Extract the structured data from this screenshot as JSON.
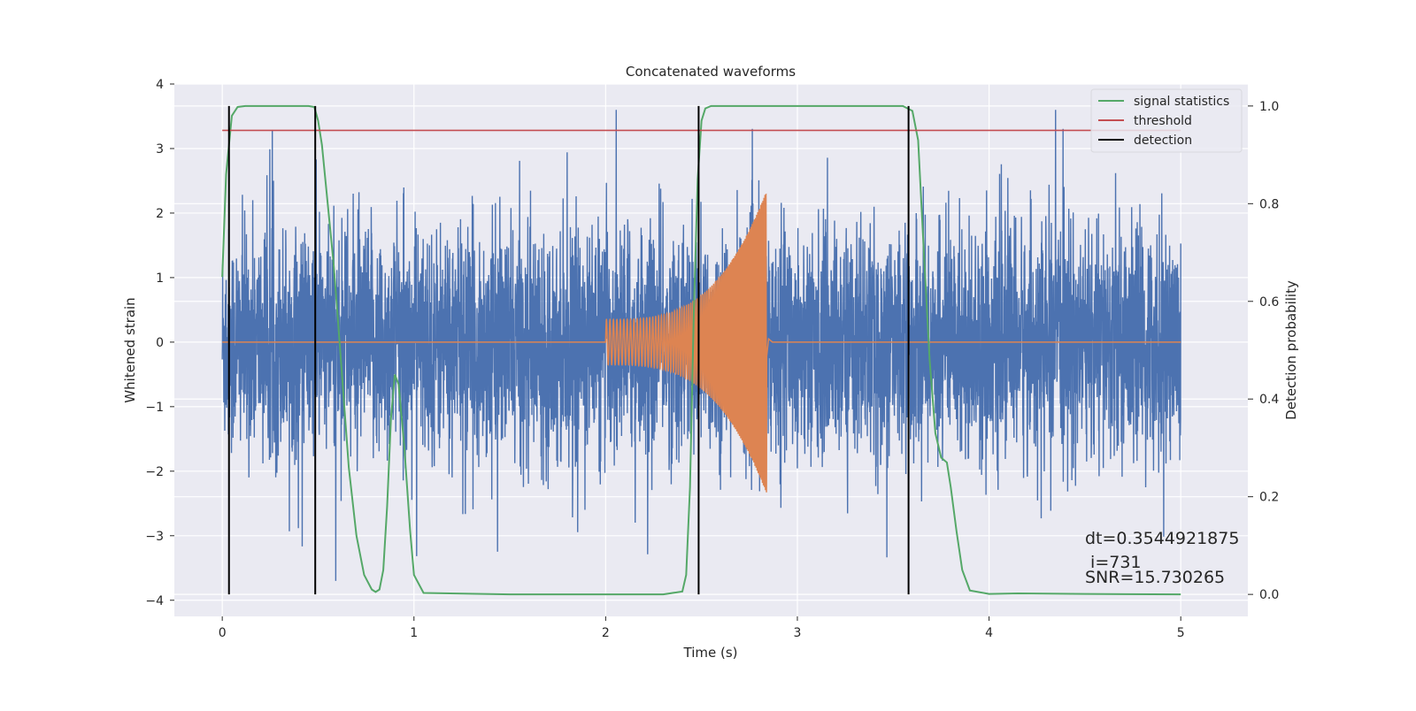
{
  "chart_data": {
    "type": "line",
    "title": "Concatenated waveforms",
    "xlabel": "Time (s)",
    "ylabel_left": "Whitened strain",
    "ylabel_right": "Detection probability",
    "xlim": [
      -0.25,
      5.35
    ],
    "ylim_left": [
      -4.25,
      4.0
    ],
    "ylim_right": [
      -0.045,
      1.045
    ],
    "x_ticks": [
      0,
      1,
      2,
      3,
      4,
      5
    ],
    "y_left_ticks": [
      -4,
      -3,
      -2,
      -1,
      0,
      1,
      2,
      3,
      4
    ],
    "y_right_ticks": [
      0.0,
      0.2,
      0.4,
      0.6,
      0.8,
      1.0
    ],
    "y_right_tick_labels": [
      "0.0",
      "0.2",
      "0.4",
      "0.6",
      "0.8",
      "1.0"
    ],
    "grid": true,
    "legend_position": "top-right",
    "colors": {
      "strain": "#4c72b0",
      "template": "#dd8452",
      "signal_statistics": "#55a868",
      "threshold": "#c44e52",
      "detection": "#000000",
      "axes_background": "#eaeaf2",
      "grid": "#ffffff"
    },
    "series": [
      {
        "name": "signal statistics",
        "axis": "right",
        "x": [
          0.0,
          0.02,
          0.05,
          0.08,
          0.12,
          0.2,
          0.3,
          0.4,
          0.45,
          0.48,
          0.5,
          0.52,
          0.55,
          0.58,
          0.6,
          0.63,
          0.66,
          0.7,
          0.74,
          0.78,
          0.8,
          0.82,
          0.84,
          0.86,
          0.88,
          0.9,
          0.92,
          0.95,
          0.98,
          1.0,
          1.05,
          1.5,
          2.0,
          2.3,
          2.4,
          2.42,
          2.44,
          2.46,
          2.48,
          2.5,
          2.52,
          2.55,
          2.6,
          3.0,
          3.5,
          3.55,
          3.6,
          3.63,
          3.66,
          3.69,
          3.72,
          3.75,
          3.78,
          3.8,
          3.83,
          3.86,
          3.9,
          4.0,
          4.15,
          4.5,
          5.0
        ],
        "values": [
          0.65,
          0.86,
          0.98,
          0.998,
          1.0,
          1.0,
          1.0,
          1.0,
          1.0,
          0.998,
          0.97,
          0.92,
          0.8,
          0.68,
          0.58,
          0.42,
          0.26,
          0.12,
          0.04,
          0.01,
          0.005,
          0.01,
          0.05,
          0.18,
          0.36,
          0.45,
          0.43,
          0.3,
          0.13,
          0.04,
          0.003,
          0.0,
          0.0,
          0.0,
          0.006,
          0.04,
          0.22,
          0.58,
          0.85,
          0.97,
          0.995,
          1.0,
          1.0,
          1.0,
          1.0,
          1.0,
          0.99,
          0.93,
          0.7,
          0.48,
          0.33,
          0.28,
          0.27,
          0.22,
          0.13,
          0.05,
          0.008,
          0.001,
          0.002,
          0.001,
          0.0
        ]
      },
      {
        "name": "threshold",
        "axis": "right",
        "x": [
          0.0,
          5.0
        ],
        "values": [
          0.95,
          0.95
        ]
      },
      {
        "name": "detection",
        "axis": "right",
        "type": "vlines",
        "x": [
          0.035,
          0.485,
          2.485,
          3.58
        ],
        "ymin": 0.0,
        "ymax": 1.0
      },
      {
        "series_role": "strain",
        "axis": "left",
        "x_range": [
          0.0,
          5.0
        ],
        "values_range": [
          -3.7,
          3.6
        ],
        "typical_amplitude": 1.2
      },
      {
        "series_role": "template",
        "axis": "left",
        "x_range": [
          0.0,
          5.0
        ],
        "chirp_start": 2.0,
        "chirp_end": 2.84,
        "start_amplitude": 0.35,
        "peak_amplitude": 2.35,
        "values_range": [
          -2.4,
          2.35
        ]
      }
    ],
    "annotations": [
      {
        "text": "dt=0.3544921875",
        "x": 4.5,
        "y": -3.0
      },
      {
        "text": " i=731",
        "x": 4.5,
        "y": -3.35
      },
      {
        "text": "SNR=15.730265",
        "x": 4.5,
        "y": -3.6
      }
    ]
  }
}
